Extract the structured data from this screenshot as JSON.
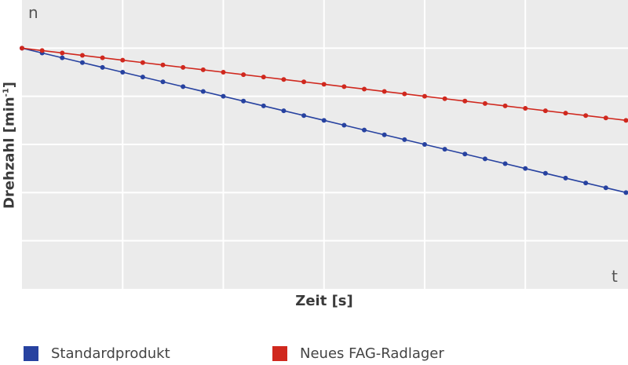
{
  "chart_data": {
    "type": "line",
    "title": "",
    "xlabel": "Zeit [s]",
    "ylabel": "Drehzahl [min-1]",
    "ylabel_base": "Drehzahl [min",
    "ylabel_sup": "-1",
    "ylabel_end": "]",
    "y_axis_symbol": "n",
    "x_axis_symbol": "t",
    "xlim": [
      0,
      30.1
    ],
    "ylim": [
      0,
      6
    ],
    "grid": true,
    "x_grid": [
      5,
      10,
      15,
      20,
      25
    ],
    "y_grid": [
      1,
      2,
      3,
      4,
      5
    ],
    "legend_position": "bottom",
    "x": [
      0,
      1,
      2,
      3,
      4,
      5,
      6,
      7,
      8,
      9,
      10,
      11,
      12,
      13,
      14,
      15,
      16,
      17,
      18,
      19,
      20,
      21,
      22,
      23,
      24,
      25,
      26,
      27,
      28,
      29,
      30
    ],
    "series": [
      {
        "name": "Standardprodukt",
        "color": "#2742a0",
        "values": [
          5,
          4.9,
          4.8,
          4.7,
          4.6,
          4.5,
          4.4,
          4.3,
          4.2,
          4.1,
          4,
          3.9,
          3.8,
          3.7,
          3.6,
          3.5,
          3.4,
          3.3,
          3.2,
          3.1,
          3,
          2.9,
          2.8,
          2.7,
          2.6,
          2.5,
          2.4,
          2.3,
          2.2,
          2.1,
          2
        ]
      },
      {
        "name": "Neues FAG-Radlager",
        "color": "#d0281e",
        "values": [
          5,
          4.95,
          4.9,
          4.85,
          4.8,
          4.75,
          4.7,
          4.65,
          4.6,
          4.55,
          4.5,
          4.45,
          4.4,
          4.35,
          4.3,
          4.25,
          4.2,
          4.15,
          4.1,
          4.05,
          4,
          3.95,
          3.9,
          3.85,
          3.8,
          3.75,
          3.7,
          3.65,
          3.6,
          3.55,
          3.5
        ]
      }
    ]
  }
}
